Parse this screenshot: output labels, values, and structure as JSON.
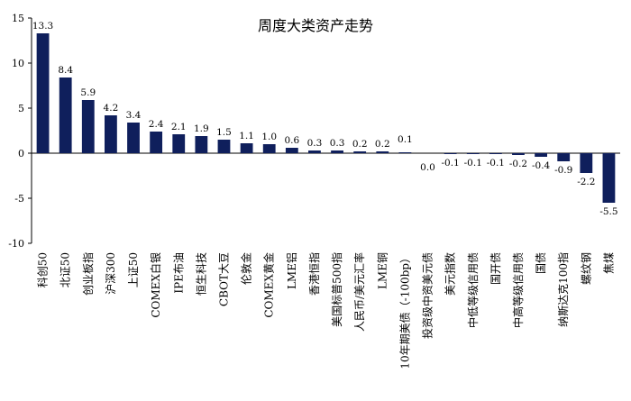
{
  "chart_data": {
    "type": "bar",
    "title": "周度大类资产走势",
    "xlabel": "",
    "ylabel": "",
    "ylim": [
      -10,
      15
    ],
    "yticks": [
      -10,
      -5,
      0,
      5,
      10,
      15
    ],
    "grid": false,
    "legend": "none",
    "bar_color": "#0f1f5c",
    "categories": [
      "科创50",
      "北证50",
      "创业板指",
      "沪深300",
      "上证50",
      "COMEX白银",
      "IPE布油",
      "恒生科技",
      "CBOT大豆",
      "伦敦金",
      "COMEX黄金",
      "LME铝",
      "香港恒指",
      "美国标普500指",
      "人民币/美元汇率",
      "LME铜",
      "10年期美债（-100bp）",
      "投资级中资美元债",
      "美元指数",
      "中低等级信用债",
      "国开债",
      "中高等级信用债",
      "国债",
      "纳斯达克100指",
      "螺纹钢",
      "焦煤"
    ],
    "values": [
      13.3,
      8.4,
      5.9,
      4.2,
      3.4,
      2.4,
      2.1,
      1.9,
      1.5,
      1.1,
      1.0,
      0.6,
      0.3,
      0.3,
      0.2,
      0.2,
      0.1,
      0.0,
      -0.1,
      -0.1,
      -0.1,
      -0.2,
      -0.4,
      -0.9,
      -2.2,
      -5.5
    ],
    "value_labels": [
      "13.3",
      "8.4",
      "5.9",
      "4.2",
      "3.4",
      "2.4",
      "2.1",
      "1.9",
      "1.5",
      "1.1",
      "1.0",
      "0.6",
      "0.3",
      "0.3",
      "0.2",
      "0.2",
      "0.1",
      "0.0",
      "-0.1",
      "-0.1",
      "-0.1",
      "-0.2",
      "-0.4",
      "-0.9",
      "-2.2",
      "-5.5"
    ]
  }
}
